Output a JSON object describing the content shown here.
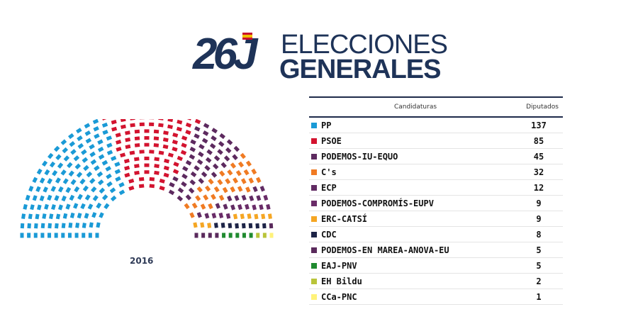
{
  "logo": {
    "number": "26J",
    "line1": "ELECCIONES",
    "line2": "GENERALES"
  },
  "chart_data": {
    "type": "table",
    "chart_kind": "parliament hemicycle",
    "year_label": "2016",
    "columns": [
      "Candidaturas",
      "Diputados"
    ],
    "total_seats": 350,
    "rows": [
      {
        "party": "PP",
        "seats": 137,
        "color": "#1a9ad6"
      },
      {
        "party": "PSOE",
        "seats": 85,
        "color": "#d3132f"
      },
      {
        "party": "PODEMOS-IU-EQUO",
        "seats": 45,
        "color": "#5d2a5f"
      },
      {
        "party": "C's",
        "seats": 32,
        "color": "#f07b23"
      },
      {
        "party": "ECP",
        "seats": 12,
        "color": "#612b63"
      },
      {
        "party": "PODEMOS-COMPROMÍS-EUPV",
        "seats": 9,
        "color": "#6a2c68"
      },
      {
        "party": "ERC-CATSÍ",
        "seats": 9,
        "color": "#f5a623"
      },
      {
        "party": "CDC",
        "seats": 8,
        "color": "#1d2447"
      },
      {
        "party": "PODEMOS-EN MAREA-ANOVA-EU",
        "seats": 5,
        "color": "#5a2a5c"
      },
      {
        "party": "EAJ-PNV",
        "seats": 5,
        "color": "#1f8a2f"
      },
      {
        "party": "EH Bildu",
        "seats": 2,
        "color": "#b9c43a"
      },
      {
        "party": "CCa-PNC",
        "seats": 1,
        "color": "#fff27a"
      }
    ]
  }
}
